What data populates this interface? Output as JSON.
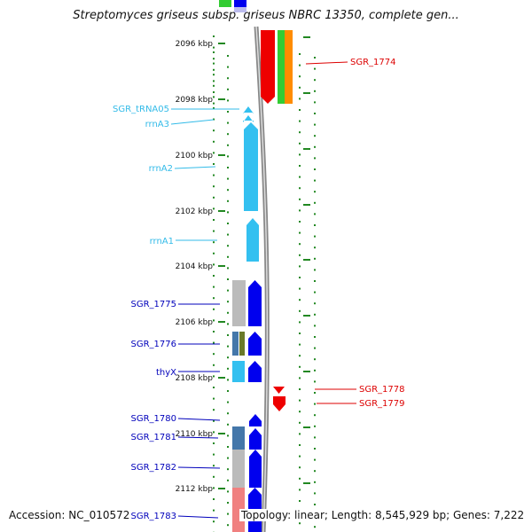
{
  "title": "Streptomyces griseus subsp. griseus NBRC 13350, complete gen...",
  "footer": {
    "accession": "Accession: NC_010572",
    "topology": "Topology: linear; Length: 8,545,929 bp; Genes: 7,222"
  },
  "ticks": [
    "2096 kbp",
    "2098 kbp",
    "2100 kbp",
    "2102 kbp",
    "2104 kbp",
    "2106 kbp",
    "2108 kbp",
    "2110 kbp",
    "2112 kbp"
  ],
  "left_labels": [
    {
      "text": "SGR_tRNA05",
      "color": "#33bbe8"
    },
    {
      "text": "rrnA3",
      "color": "#33bbe8"
    },
    {
      "text": "rrnA2",
      "color": "#33bbe8"
    },
    {
      "text": "rrnA1",
      "color": "#33bbe8"
    },
    {
      "text": "SGR_1775",
      "color": "#0000bb"
    },
    {
      "text": "SGR_1776",
      "color": "#0000bb"
    },
    {
      "text": "thyX",
      "color": "#0000bb"
    },
    {
      "text": "SGR_1780",
      "color": "#0000bb"
    },
    {
      "text": "SGR_1781",
      "color": "#0000bb"
    },
    {
      "text": "SGR_1782",
      "color": "#0000bb"
    },
    {
      "text": "SGR_1783",
      "color": "#0000bb"
    }
  ],
  "right_labels": [
    {
      "text": "SGR_1774",
      "color": "#dd0000"
    },
    {
      "text": "SGR_1778",
      "color": "#dd0000"
    },
    {
      "text": "SGR_1779",
      "color": "#dd0000"
    }
  ],
  "colors": {
    "blue": "#0000ee",
    "cyan": "#33c0f0",
    "red": "#ee0000",
    "green": "#33cc33",
    "orange": "#ff8c00",
    "gray": "#bbbbbb",
    "olive": "#6a7a2a",
    "steel": "#4477aa",
    "pink": "#f08080",
    "tick": "#228822",
    "backbone": "#888888"
  }
}
